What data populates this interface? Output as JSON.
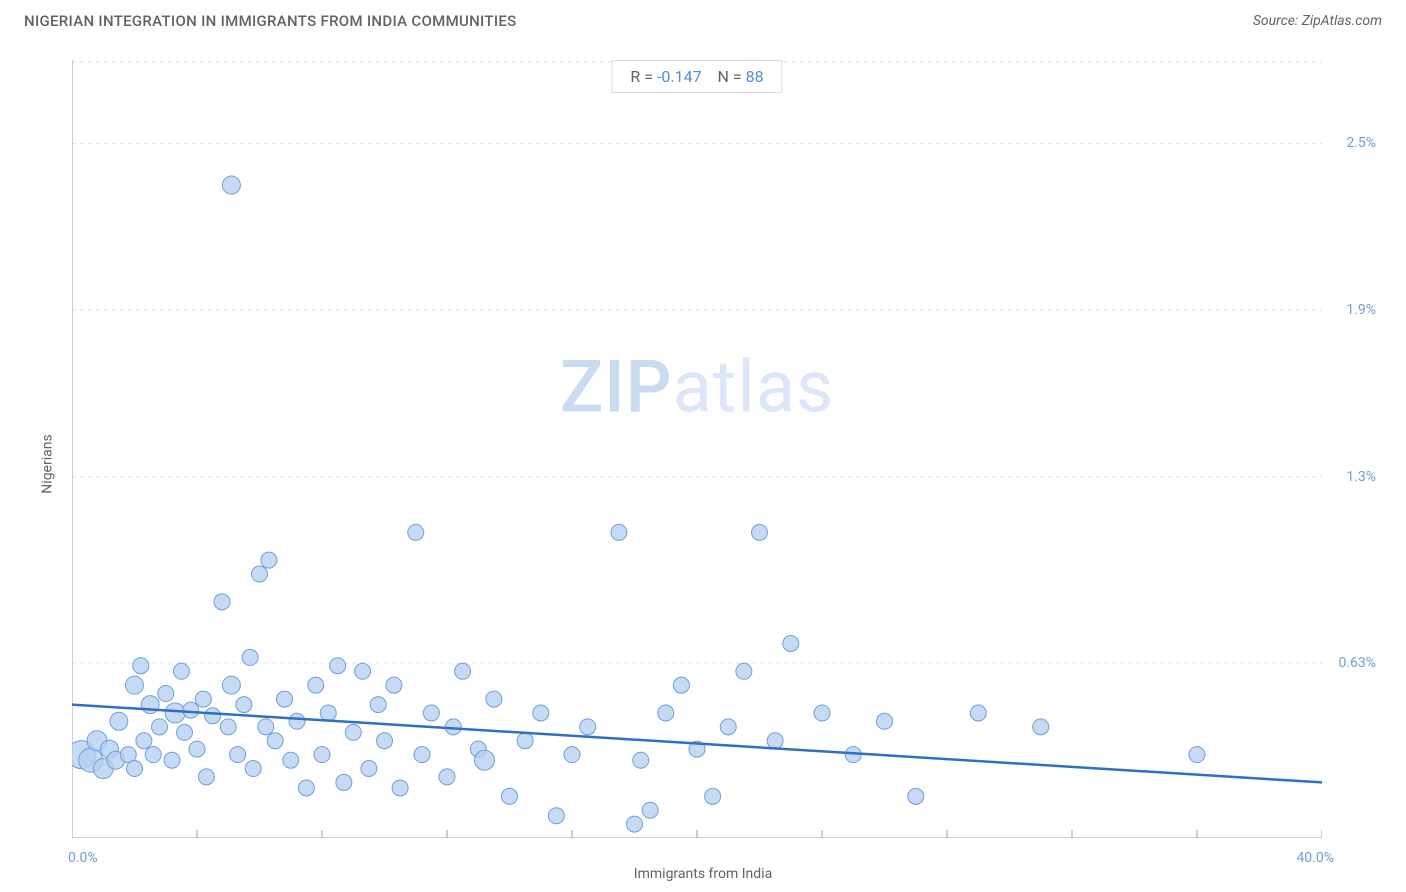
{
  "title": "NIGERIAN INTEGRATION IN IMMIGRANTS FROM INDIA COMMUNITIES",
  "source": "Source: ZipAtlas.com",
  "chart": {
    "type": "scatter",
    "xlabel": "Immigrants from India",
    "ylabel": "Nigerians",
    "xlim": [
      0,
      40
    ],
    "ylim": [
      0,
      2.8
    ],
    "x_start_label": "0.0%",
    "x_end_label": "40.0%",
    "y_ticks": [
      {
        "v": 0.63,
        "label": "0.63%"
      },
      {
        "v": 1.3,
        "label": "1.3%"
      },
      {
        "v": 1.9,
        "label": "1.9%"
      },
      {
        "v": 2.5,
        "label": "2.5%"
      }
    ],
    "x_ticks_minor": [
      0,
      4,
      8,
      12,
      16,
      20,
      24,
      28,
      32,
      36,
      40
    ],
    "background_color": "#ffffff",
    "grid_color": "#e0e0e0",
    "grid_dash": "4,4",
    "axis_color": "#9aa0a6",
    "tick_label_color": "#6f9edb",
    "point_fill": "#b3cef0",
    "point_stroke": "#6f9edb",
    "point_stroke_width": 1,
    "point_radius_default": 8,
    "trend_color": "#2f6fc4",
    "trend_width": 2.5,
    "trend": {
      "y_at_x0": 0.48,
      "y_at_xmax": 0.2
    },
    "stats": {
      "r_label": "R =",
      "r_value": "-0.147",
      "n_label": "N =",
      "n_value": "88"
    },
    "watermark": {
      "zip": "ZIP",
      "atlas": "atlas"
    },
    "points": [
      {
        "x": 0.3,
        "y": 0.3,
        "r": 14
      },
      {
        "x": 0.6,
        "y": 0.28,
        "r": 12
      },
      {
        "x": 0.8,
        "y": 0.35,
        "r": 10
      },
      {
        "x": 1.0,
        "y": 0.25,
        "r": 10
      },
      {
        "x": 1.2,
        "y": 0.32,
        "r": 9
      },
      {
        "x": 1.4,
        "y": 0.28,
        "r": 9
      },
      {
        "x": 1.5,
        "y": 0.42,
        "r": 9
      },
      {
        "x": 1.8,
        "y": 0.3,
        "r": 8
      },
      {
        "x": 2.0,
        "y": 0.55,
        "r": 9
      },
      {
        "x": 2.0,
        "y": 0.25,
        "r": 8
      },
      {
        "x": 2.2,
        "y": 0.62,
        "r": 8
      },
      {
        "x": 2.3,
        "y": 0.35,
        "r": 8
      },
      {
        "x": 2.5,
        "y": 0.48,
        "r": 9
      },
      {
        "x": 2.6,
        "y": 0.3,
        "r": 8
      },
      {
        "x": 2.8,
        "y": 0.4,
        "r": 8
      },
      {
        "x": 3.0,
        "y": 0.52,
        "r": 8
      },
      {
        "x": 3.2,
        "y": 0.28,
        "r": 8
      },
      {
        "x": 3.3,
        "y": 0.45,
        "r": 10
      },
      {
        "x": 3.5,
        "y": 0.6,
        "r": 8
      },
      {
        "x": 3.6,
        "y": 0.38,
        "r": 8
      },
      {
        "x": 3.8,
        "y": 0.46,
        "r": 8
      },
      {
        "x": 4.0,
        "y": 0.32,
        "r": 8
      },
      {
        "x": 4.2,
        "y": 0.5,
        "r": 8
      },
      {
        "x": 4.3,
        "y": 0.22,
        "r": 8
      },
      {
        "x": 4.5,
        "y": 0.44,
        "r": 8
      },
      {
        "x": 4.8,
        "y": 0.85,
        "r": 8
      },
      {
        "x": 5.0,
        "y": 0.4,
        "r": 8
      },
      {
        "x": 5.1,
        "y": 0.55,
        "r": 9
      },
      {
        "x": 5.1,
        "y": 2.35,
        "r": 9
      },
      {
        "x": 5.3,
        "y": 0.3,
        "r": 8
      },
      {
        "x": 5.5,
        "y": 0.48,
        "r": 8
      },
      {
        "x": 5.7,
        "y": 0.65,
        "r": 8
      },
      {
        "x": 5.8,
        "y": 0.25,
        "r": 8
      },
      {
        "x": 6.0,
        "y": 0.95,
        "r": 8
      },
      {
        "x": 6.2,
        "y": 0.4,
        "r": 8
      },
      {
        "x": 6.3,
        "y": 1.0,
        "r": 8
      },
      {
        "x": 6.5,
        "y": 0.35,
        "r": 8
      },
      {
        "x": 6.8,
        "y": 0.5,
        "r": 8
      },
      {
        "x": 7.0,
        "y": 0.28,
        "r": 8
      },
      {
        "x": 7.2,
        "y": 0.42,
        "r": 8
      },
      {
        "x": 7.5,
        "y": 0.18,
        "r": 8
      },
      {
        "x": 7.8,
        "y": 0.55,
        "r": 8
      },
      {
        "x": 8.0,
        "y": 0.3,
        "r": 8
      },
      {
        "x": 8.2,
        "y": 0.45,
        "r": 8
      },
      {
        "x": 8.5,
        "y": 0.62,
        "r": 8
      },
      {
        "x": 8.7,
        "y": 0.2,
        "r": 8
      },
      {
        "x": 9.0,
        "y": 0.38,
        "r": 8
      },
      {
        "x": 9.3,
        "y": 0.6,
        "r": 8
      },
      {
        "x": 9.5,
        "y": 0.25,
        "r": 8
      },
      {
        "x": 9.8,
        "y": 0.48,
        "r": 8
      },
      {
        "x": 10.0,
        "y": 0.35,
        "r": 8
      },
      {
        "x": 10.3,
        "y": 0.55,
        "r": 8
      },
      {
        "x": 10.5,
        "y": 0.18,
        "r": 8
      },
      {
        "x": 11.0,
        "y": 1.1,
        "r": 8
      },
      {
        "x": 11.2,
        "y": 0.3,
        "r": 8
      },
      {
        "x": 11.5,
        "y": 0.45,
        "r": 8
      },
      {
        "x": 12.0,
        "y": 0.22,
        "r": 8
      },
      {
        "x": 12.2,
        "y": 0.4,
        "r": 8
      },
      {
        "x": 12.5,
        "y": 0.6,
        "r": 8
      },
      {
        "x": 13.0,
        "y": 0.32,
        "r": 8
      },
      {
        "x": 13.2,
        "y": 0.28,
        "r": 10
      },
      {
        "x": 13.5,
        "y": 0.5,
        "r": 8
      },
      {
        "x": 14.0,
        "y": 0.15,
        "r": 8
      },
      {
        "x": 14.5,
        "y": 0.35,
        "r": 8
      },
      {
        "x": 15.0,
        "y": 0.45,
        "r": 8
      },
      {
        "x": 15.5,
        "y": 0.08,
        "r": 8
      },
      {
        "x": 16.0,
        "y": 0.3,
        "r": 8
      },
      {
        "x": 16.5,
        "y": 0.4,
        "r": 8
      },
      {
        "x": 17.5,
        "y": 1.1,
        "r": 8
      },
      {
        "x": 18.0,
        "y": 0.05,
        "r": 8
      },
      {
        "x": 18.2,
        "y": 0.28,
        "r": 8
      },
      {
        "x": 18.5,
        "y": 0.1,
        "r": 8
      },
      {
        "x": 19.0,
        "y": 0.45,
        "r": 8
      },
      {
        "x": 19.5,
        "y": 0.55,
        "r": 8
      },
      {
        "x": 20.0,
        "y": 0.32,
        "r": 8
      },
      {
        "x": 20.5,
        "y": 0.15,
        "r": 8
      },
      {
        "x": 21.0,
        "y": 0.4,
        "r": 8
      },
      {
        "x": 21.5,
        "y": 0.6,
        "r": 8
      },
      {
        "x": 22.0,
        "y": 1.1,
        "r": 8
      },
      {
        "x": 22.5,
        "y": 0.35,
        "r": 8
      },
      {
        "x": 23.0,
        "y": 0.7,
        "r": 8
      },
      {
        "x": 24.0,
        "y": 0.45,
        "r": 8
      },
      {
        "x": 25.0,
        "y": 0.3,
        "r": 8
      },
      {
        "x": 26.0,
        "y": 0.42,
        "r": 8
      },
      {
        "x": 27.0,
        "y": 0.15,
        "r": 8
      },
      {
        "x": 29.0,
        "y": 0.45,
        "r": 8
      },
      {
        "x": 31.0,
        "y": 0.4,
        "r": 8
      },
      {
        "x": 36.0,
        "y": 0.3,
        "r": 8
      }
    ]
  }
}
